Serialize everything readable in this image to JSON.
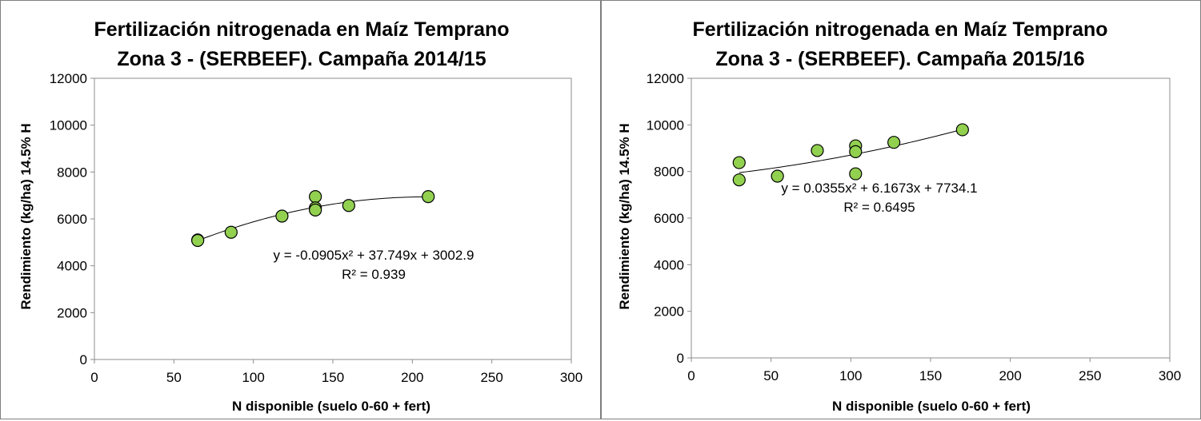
{
  "chart_data": [
    {
      "type": "scatter",
      "title_line1": "Fertilización nitrogenada en Maíz Temprano",
      "title_line2": "Zona 3 - (SERBEEF). Campaña 2014/15",
      "xlabel": "N disponible  (suelo 0-60 + fert)",
      "ylabel": "Rendimiento (kg/ha) 14.5% H",
      "xlim": [
        0,
        300
      ],
      "ylim": [
        0,
        12000
      ],
      "xticks": [
        "0",
        "50",
        "100",
        "150",
        "200",
        "250",
        "300"
      ],
      "yticks": [
        "0",
        "2000",
        "4000",
        "6000",
        "8000",
        "10000",
        "12000"
      ],
      "points": [
        {
          "x": 65,
          "y": 5100
        },
        {
          "x": 65,
          "y": 5080
        },
        {
          "x": 86,
          "y": 5430
        },
        {
          "x": 118,
          "y": 6120
        },
        {
          "x": 139,
          "y": 6950
        },
        {
          "x": 139,
          "y": 6470
        },
        {
          "x": 139,
          "y": 6380
        },
        {
          "x": 160,
          "y": 6570
        },
        {
          "x": 210,
          "y": 6950
        }
      ],
      "trendline": {
        "a": -0.0905,
        "b": 37.749,
        "c": 3002.9,
        "x_from": 65,
        "x_to": 210
      },
      "equation": "y = -0.0905x² + 37.749x + 3002.9",
      "r2": "R² = 0.939",
      "marker_color": "#92d050",
      "marker_edge": "#000000"
    },
    {
      "type": "scatter",
      "title_line1": "Fertilización nitrogenada en Maíz Temprano",
      "title_line2": "Zona 3 - (SERBEEF). Campaña 2015/16",
      "xlabel": "N disponible  (suelo 0-60 + fert)",
      "ylabel": "Rendimiento (kg/ha) 14.5% H",
      "xlim": [
        0,
        300
      ],
      "ylim": [
        0,
        12000
      ],
      "xticks": [
        "0",
        "50",
        "100",
        "150",
        "200",
        "250",
        "300"
      ],
      "yticks": [
        "0",
        "2000",
        "4000",
        "6000",
        "8000",
        "10000",
        "12000"
      ],
      "points": [
        {
          "x": 30,
          "y": 8380
        },
        {
          "x": 30,
          "y": 7640
        },
        {
          "x": 54,
          "y": 7800
        },
        {
          "x": 79,
          "y": 8900
        },
        {
          "x": 103,
          "y": 9100
        },
        {
          "x": 103,
          "y": 8850
        },
        {
          "x": 103,
          "y": 7900
        },
        {
          "x": 127,
          "y": 9250
        },
        {
          "x": 170,
          "y": 9790
        }
      ],
      "trendline": {
        "a": 0.0355,
        "b": 6.1673,
        "c": 7734.1,
        "x_from": 30,
        "x_to": 170
      },
      "equation": "y = 0.0355x² + 6.1673x + 7734.1",
      "r2": "R² = 0.6495",
      "marker_color": "#92d050",
      "marker_edge": "#000000"
    }
  ]
}
